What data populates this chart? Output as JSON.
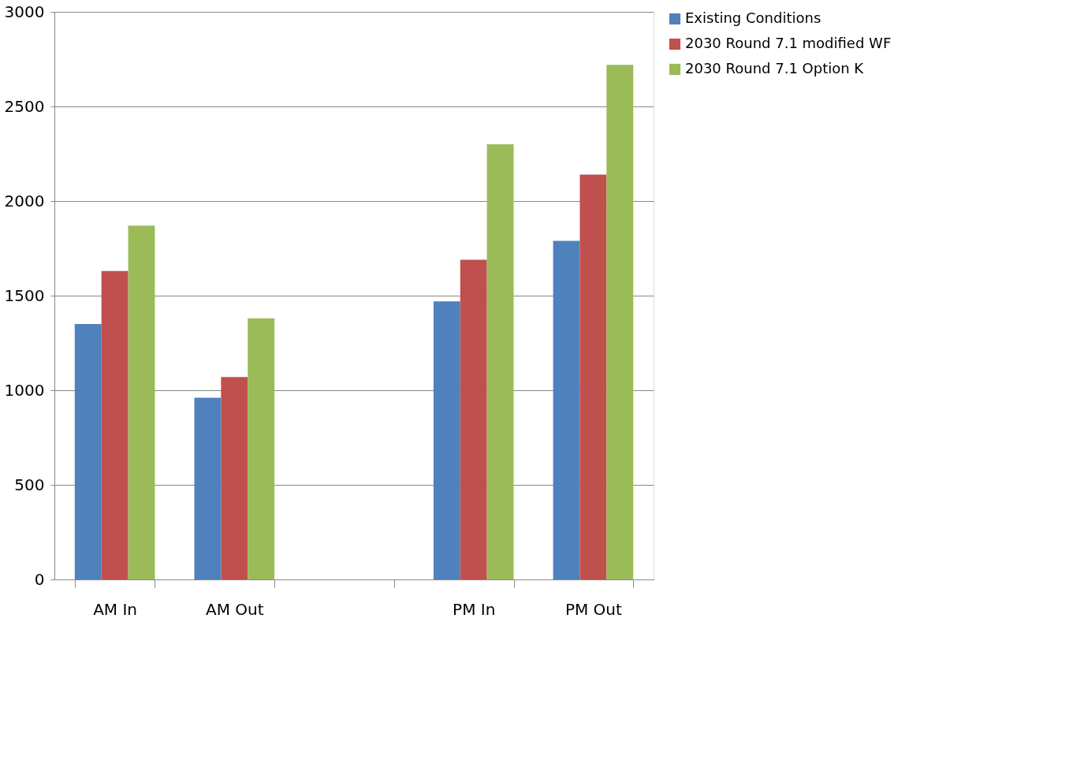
{
  "chart_data": {
    "type": "bar",
    "categories": [
      "AM In",
      "AM Out",
      null,
      "PM In",
      "PM Out"
    ],
    "series": [
      {
        "name": "Existing Conditions",
        "color": "#4f81bd",
        "values": [
          1350,
          960,
          null,
          1470,
          1790
        ]
      },
      {
        "name": "2030 Round 7.1 modified WF",
        "color": "#c0504d",
        "values": [
          1630,
          1070,
          null,
          1690,
          2140
        ]
      },
      {
        "name": "2030 Round 7.1 Option K",
        "color": "#9bbb59",
        "values": [
          1870,
          1380,
          null,
          2300,
          2720
        ]
      }
    ],
    "ylim": [
      0,
      3000
    ],
    "yticks": [
      0,
      500,
      1000,
      1500,
      2000,
      2500,
      3000
    ],
    "grid": "y",
    "legend": "right"
  }
}
